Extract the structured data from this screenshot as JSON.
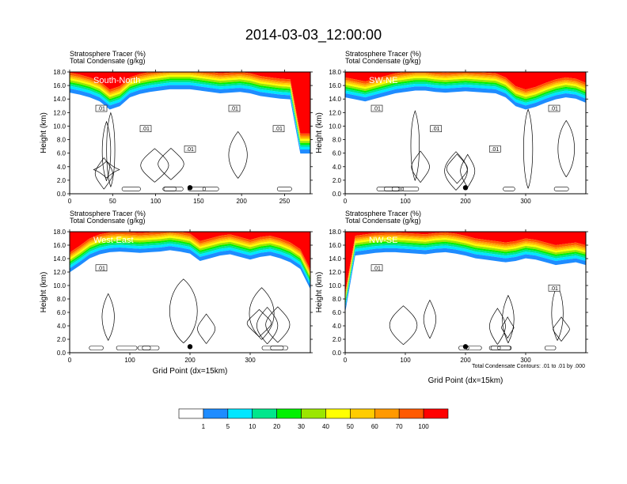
{
  "figure": {
    "title": "2014-03-03_12:00:00",
    "field_label": "Stratosphere Tracer   (%)",
    "contour_label": "Total Condensate   (g/kg)",
    "ylabel": "Height (km)",
    "xlabel": "Grid Point (dx=15km)",
    "contour_note": "Total Condensate Contours: .01 to .01 by .000"
  },
  "chart_data": [
    {
      "type": "heatmap",
      "name": "South-North",
      "x_range": [
        0,
        280
      ],
      "x_ticks": [
        0,
        50,
        100,
        150,
        200,
        250
      ],
      "y_range": [
        0,
        18
      ],
      "y_ticks": [
        0.0,
        2.0,
        4.0,
        6.0,
        8.0,
        10.0,
        12.0,
        14.0,
        16.0,
        18.0
      ],
      "tracer_base_km": [
        15.5,
        15.2,
        14.8,
        14.2,
        13.0,
        13.5,
        14.8,
        15.3,
        15.6,
        15.8,
        16.0,
        16.0,
        16.0,
        15.8,
        15.6,
        15.4,
        15.5,
        15.6,
        15.4,
        15.0,
        14.8,
        14.6,
        14.5,
        6.5,
        6.5
      ],
      "contour_labels": [
        ".01",
        ".01",
        ".01",
        ".01",
        ".01"
      ],
      "marker_x": 140
    },
    {
      "type": "heatmap",
      "name": "SW-NE",
      "x_range": [
        0,
        400
      ],
      "x_ticks": [
        0,
        100,
        200,
        300
      ],
      "y_range": [
        0,
        18
      ],
      "y_ticks": [
        0.0,
        2.0,
        4.0,
        6.0,
        8.0,
        10.0,
        12.0,
        14.0,
        16.0,
        18.0
      ],
      "tracer_base_km": [
        14.8,
        14.5,
        14.2,
        14.6,
        15.0,
        15.4,
        15.6,
        15.8,
        15.8,
        15.6,
        15.5,
        15.6,
        15.7,
        15.6,
        15.5,
        15.4,
        14.8,
        13.5,
        13.0,
        13.4,
        14.0,
        14.5,
        14.8,
        14.6,
        14.0
      ],
      "contour_labels": [
        ".01",
        ".01",
        ".01",
        ".01"
      ],
      "marker_x": 200
    },
    {
      "type": "heatmap",
      "name": "West-East",
      "x_range": [
        0,
        400
      ],
      "x_ticks": [
        0,
        100,
        200,
        300
      ],
      "y_range": [
        0,
        18
      ],
      "y_ticks": [
        0.0,
        2.0,
        4.0,
        6.0,
        8.0,
        10.0,
        12.0,
        14.0,
        16.0,
        18.0
      ],
      "tracer_base_km": [
        12.5,
        13.5,
        14.6,
        15.2,
        15.5,
        15.6,
        15.5,
        15.4,
        15.5,
        15.6,
        15.8,
        15.6,
        15.3,
        14.2,
        14.6,
        15.0,
        15.2,
        14.8,
        14.4,
        14.8,
        15.0,
        14.6,
        14.0,
        13.0,
        10.0
      ],
      "contour_labels": [
        ".01"
      ],
      "marker_x": 200
    },
    {
      "type": "heatmap",
      "name": "NW-SE",
      "x_range": [
        0,
        400
      ],
      "x_ticks": [
        0,
        100,
        200,
        300
      ],
      "y_range": [
        0,
        18
      ],
      "y_ticks": [
        0.0,
        2.0,
        4.0,
        6.0,
        8.0,
        10.0,
        12.0,
        14.0,
        16.0,
        18.0
      ],
      "tracer_base_km": [
        6.5,
        15.0,
        15.2,
        15.4,
        15.5,
        15.5,
        15.4,
        15.3,
        15.2,
        15.4,
        15.5,
        15.3,
        15.0,
        14.6,
        14.4,
        14.2,
        14.0,
        14.2,
        14.6,
        14.4,
        14.0,
        13.6,
        13.8,
        14.0,
        13.6
      ],
      "contour_labels": [
        ".01",
        ".01"
      ],
      "marker_x": 200
    }
  ],
  "colorbar": {
    "labels": [
      "1",
      "5",
      "10",
      "20",
      "30",
      "40",
      "50",
      "60",
      "70",
      "100"
    ],
    "colors": [
      "#ffffff",
      "#1e8cff",
      "#00e6ff",
      "#00e68c",
      "#00f000",
      "#9be600",
      "#ffff00",
      "#ffcc00",
      "#ff9900",
      "#ff5a00",
      "#ff0000"
    ]
  }
}
